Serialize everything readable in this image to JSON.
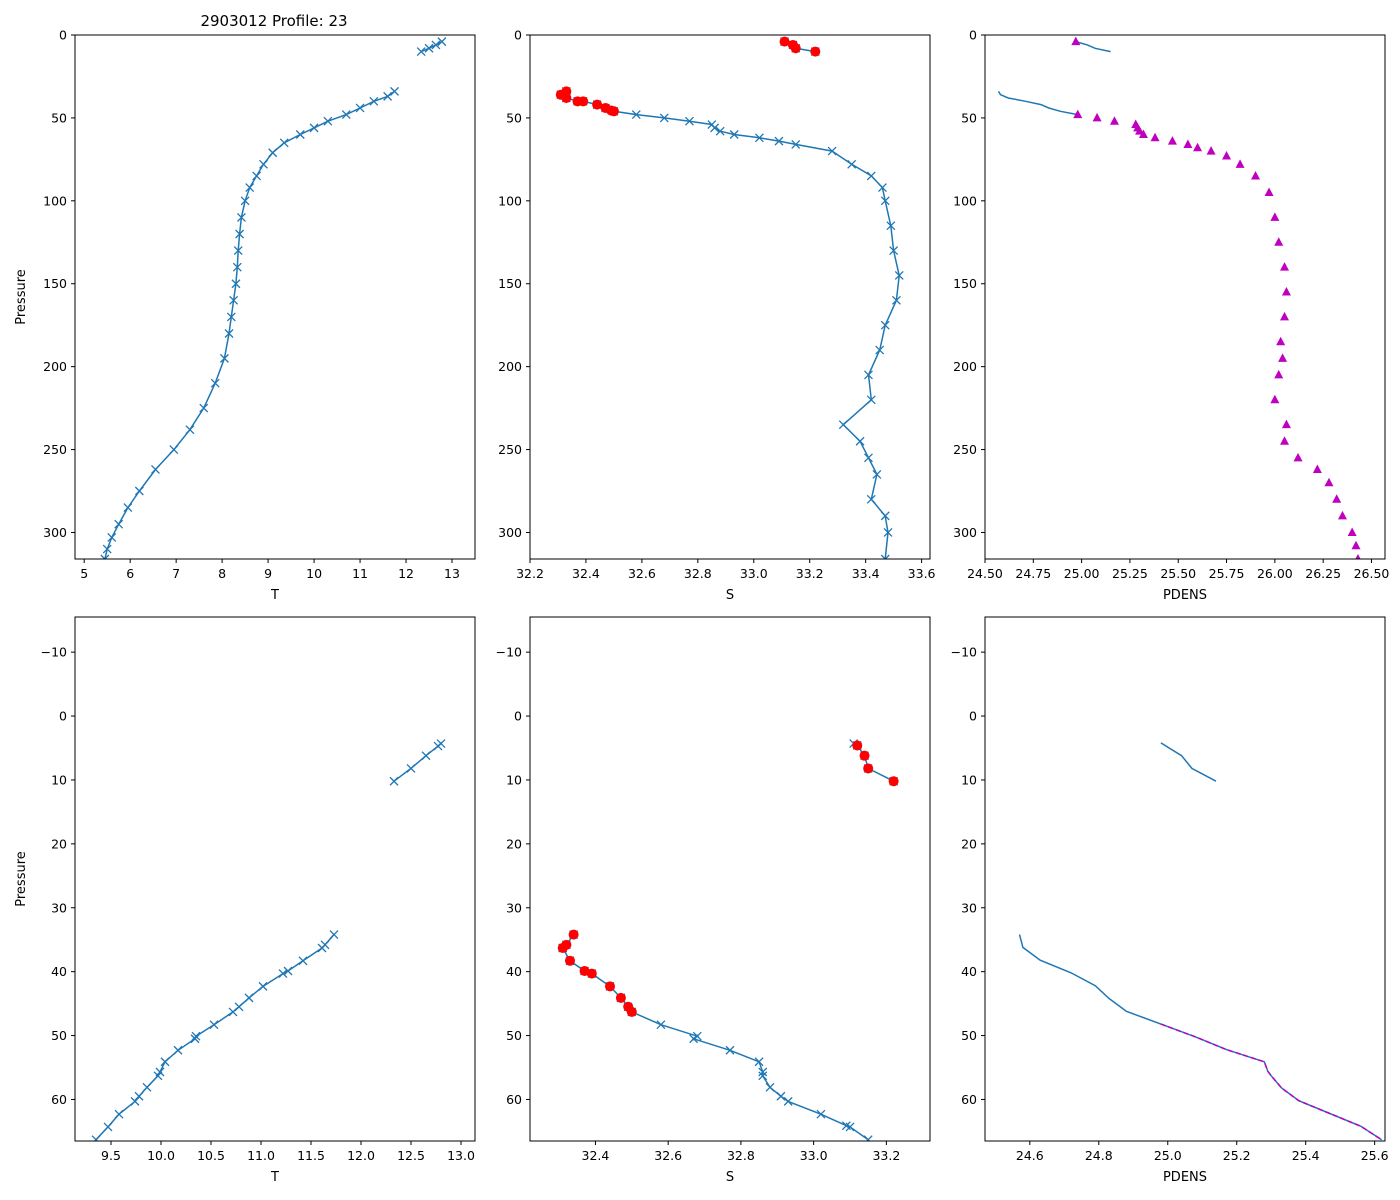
{
  "figure": {
    "title": "2903012 Profile: 23",
    "colors": {
      "series": "#1f77b4",
      "flag_red": "#ff0000",
      "flag_magenta": "#bf00bf",
      "axes": "#000000"
    }
  },
  "chart_data": [
    {
      "id": "top-temperature",
      "type": "line",
      "xlabel": "T",
      "ylabel": "Pressure",
      "xlim": [
        4.8,
        13.5
      ],
      "ylim": [
        316,
        0
      ],
      "xticks": [
        5,
        6,
        7,
        8,
        9,
        10,
        11,
        12,
        13
      ],
      "xtick_labels": [
        "5",
        "6",
        "7",
        "8",
        "9",
        "10",
        "11",
        "12",
        "13"
      ],
      "yticks": [
        0,
        50,
        100,
        150,
        200,
        250,
        300
      ],
      "ytick_labels": [
        "0",
        "50",
        "100",
        "150",
        "200",
        "250",
        "300"
      ],
      "series": [
        {
          "name": "T (upper segment)",
          "marker": "x",
          "color": "#1f77b4",
          "x": [
            12.33,
            12.5,
            12.65,
            12.78
          ],
          "y": [
            10,
            8,
            6,
            4
          ]
        },
        {
          "name": "T",
          "marker": "x",
          "color": "#1f77b4",
          "x": [
            11.75,
            11.6,
            11.3,
            11.0,
            10.7,
            10.3,
            10.0,
            9.7,
            9.35,
            9.1,
            8.9,
            8.75,
            8.6,
            8.5,
            8.42,
            8.38,
            8.35,
            8.33,
            8.3,
            8.25,
            8.2,
            8.15,
            8.05,
            7.85,
            7.6,
            7.3,
            6.95,
            6.55,
            6.2,
            5.95,
            5.75,
            5.6,
            5.5,
            5.45
          ],
          "y": [
            34,
            37,
            40,
            44,
            48,
            52,
            56,
            60,
            65,
            71,
            78,
            85,
            92,
            100,
            110,
            120,
            130,
            140,
            150,
            160,
            170,
            180,
            195,
            210,
            225,
            238,
            250,
            262,
            275,
            285,
            295,
            303,
            310,
            316
          ]
        }
      ]
    },
    {
      "id": "top-salinity",
      "type": "line",
      "xlabel": "S",
      "ylabel": "",
      "xlim": [
        32.2,
        33.63
      ],
      "ylim": [
        316,
        0
      ],
      "xticks": [
        32.2,
        32.4,
        32.6,
        32.8,
        33.0,
        33.2,
        33.4,
        33.6
      ],
      "xtick_labels": [
        "32.2",
        "32.4",
        "32.6",
        "32.8",
        "33.0",
        "33.2",
        "33.4",
        "33.6"
      ],
      "yticks": [
        0,
        50,
        100,
        150,
        200,
        250,
        300
      ],
      "ytick_labels": [
        "0",
        "50",
        "100",
        "150",
        "200",
        "250",
        "300"
      ],
      "series": [
        {
          "name": "S (upper segment)",
          "marker": "x",
          "color": "#1f77b4",
          "x": [
            33.11,
            33.14,
            33.15,
            33.22
          ],
          "y": [
            4,
            6,
            8,
            10
          ]
        },
        {
          "name": "S",
          "marker": "x",
          "color": "#1f77b4",
          "x": [
            32.33,
            32.31,
            32.32,
            32.33,
            32.37,
            32.39,
            32.44,
            32.47,
            32.5,
            32.58,
            32.68,
            32.77,
            32.85,
            32.86,
            32.88,
            32.93,
            33.02,
            33.09,
            33.15,
            33.28,
            33.35,
            33.42,
            33.46,
            33.47,
            33.49,
            33.5,
            33.52,
            33.51,
            33.47,
            33.45,
            33.41,
            33.42,
            33.32,
            33.38,
            33.41,
            33.44,
            33.42,
            33.47,
            33.48,
            33.47
          ],
          "y": [
            34,
            36,
            36,
            38,
            40,
            40,
            42,
            44,
            46,
            48,
            50,
            52,
            54,
            56,
            58,
            60,
            62,
            64,
            66,
            70,
            78,
            85,
            92,
            100,
            115,
            130,
            145,
            160,
            175,
            190,
            205,
            220,
            235,
            245,
            255,
            265,
            280,
            290,
            300,
            316
          ]
        },
        {
          "name": "S flagged",
          "marker": "o",
          "color": "#ff0000",
          "x": [
            33.11,
            33.14,
            33.15,
            33.22,
            32.33,
            32.31,
            32.32,
            32.33,
            32.37,
            32.39,
            32.44,
            32.47,
            32.49,
            32.5
          ],
          "y": [
            4,
            6,
            8,
            10,
            34,
            36,
            36,
            38,
            40,
            40,
            42,
            44,
            45.5,
            46
          ]
        }
      ]
    },
    {
      "id": "top-density",
      "type": "line",
      "xlabel": "PDENS",
      "ylabel": "",
      "xlim": [
        24.5,
        26.57
      ],
      "ylim": [
        316,
        0
      ],
      "xticks": [
        24.5,
        24.75,
        25.0,
        25.25,
        25.5,
        25.75,
        26.0,
        26.25,
        26.5
      ],
      "xtick_labels": [
        "24.50",
        "24.75",
        "25.00",
        "25.25",
        "25.50",
        "25.75",
        "26.00",
        "26.25",
        "26.50"
      ],
      "yticks": [
        0,
        50,
        100,
        150,
        200,
        250,
        300
      ],
      "ytick_labels": [
        "0",
        "50",
        "100",
        "150",
        "200",
        "250",
        "300"
      ],
      "series": [
        {
          "name": "PDENS (upper segment)",
          "marker": "none",
          "color": "#1f77b4",
          "x": [
            24.97,
            25.03,
            25.07,
            25.15
          ],
          "y": [
            4,
            6,
            8,
            10
          ]
        },
        {
          "name": "PDENS",
          "marker": "none",
          "color": "#1f77b4",
          "x": [
            24.57,
            24.58,
            24.62,
            24.71,
            24.79,
            24.83,
            24.89,
            24.98
          ],
          "y": [
            34,
            36,
            38,
            40,
            42,
            44,
            46,
            48
          ]
        },
        {
          "name": "PDENS flagged",
          "marker": "^",
          "color": "#bf00bf",
          "x": [
            24.97,
            24.98,
            25.08,
            25.17,
            25.28,
            25.29,
            25.3,
            25.32,
            25.38,
            25.47,
            25.55,
            25.6,
            25.67,
            25.75,
            25.82,
            25.9,
            25.97,
            26.0,
            26.02,
            26.05,
            26.06,
            26.05,
            26.03,
            26.04,
            26.02,
            26.0,
            26.06,
            26.05,
            26.12,
            26.22,
            26.28,
            26.32,
            26.35,
            26.4,
            26.42,
            26.43
          ],
          "y": [
            4,
            48,
            50,
            52,
            54,
            56,
            58,
            60,
            62,
            64,
            66,
            68,
            70,
            73,
            78,
            85,
            95,
            110,
            125,
            140,
            155,
            170,
            185,
            195,
            205,
            220,
            235,
            245,
            255,
            262,
            270,
            280,
            290,
            300,
            308,
            316
          ]
        }
      ]
    },
    {
      "id": "bottom-temperature",
      "type": "line",
      "xlabel": "T",
      "ylabel": "Pressure",
      "xlim": [
        9.14,
        13.14
      ],
      "ylim": [
        66.5,
        -15.5
      ],
      "xticks": [
        9.5,
        10.0,
        10.5,
        11.0,
        11.5,
        12.0,
        12.5,
        13.0
      ],
      "xtick_labels": [
        "9.5",
        "10.0",
        "10.5",
        "11.0",
        "11.5",
        "12.0",
        "12.5",
        "13.0"
      ],
      "yticks": [
        -10,
        0,
        10,
        20,
        30,
        40,
        50,
        60
      ],
      "ytick_labels": [
        "−10",
        "0",
        "10",
        "20",
        "30",
        "40",
        "50",
        "60"
      ],
      "series": [
        {
          "name": "T (upper segment)",
          "marker": "x",
          "color": "#1f77b4",
          "x": [
            12.33,
            12.5,
            12.65,
            12.77,
            12.8
          ],
          "y": [
            10.2,
            8.2,
            6.2,
            4.7,
            4.3
          ]
        },
        {
          "name": "T",
          "marker": "x",
          "color": "#1f77b4",
          "x": [
            11.73,
            11.64,
            11.61,
            11.42,
            11.27,
            11.22,
            11.02,
            10.88,
            10.78,
            10.72,
            10.53,
            10.35,
            10.34,
            10.17,
            10.04,
            9.99,
            9.97,
            9.86,
            9.78,
            9.74,
            9.58,
            9.47,
            9.35
          ],
          "y": [
            34.2,
            35.8,
            36.3,
            38.3,
            39.9,
            40.3,
            42.3,
            44.1,
            45.5,
            46.3,
            48.3,
            50.1,
            50.5,
            52.3,
            54.1,
            55.7,
            56.3,
            58.1,
            59.5,
            60.3,
            62.3,
            64.3,
            66.3
          ]
        }
      ]
    },
    {
      "id": "bottom-salinity",
      "type": "line",
      "xlabel": "S",
      "ylabel": "",
      "xlim": [
        32.22,
        33.32
      ],
      "ylim": [
        66.5,
        -15.5
      ],
      "xticks": [
        32.4,
        32.6,
        32.8,
        33.0,
        33.2
      ],
      "xtick_labels": [
        "32.4",
        "32.6",
        "32.8",
        "33.0",
        "33.2"
      ],
      "yticks": [
        -10,
        0,
        10,
        20,
        30,
        40,
        50,
        60
      ],
      "ytick_labels": [
        "−10",
        "0",
        "10",
        "20",
        "30",
        "40",
        "50",
        "60"
      ],
      "series": [
        {
          "name": "S (upper segment)",
          "marker": "x",
          "color": "#1f77b4",
          "x": [
            33.11,
            33.12,
            33.14,
            33.15,
            33.22
          ],
          "y": [
            4.3,
            4.6,
            6.2,
            8.2,
            10.2
          ]
        },
        {
          "name": "S",
          "marker": "x",
          "color": "#1f77b4",
          "x": [
            32.34,
            32.32,
            32.31,
            32.31,
            32.33,
            32.37,
            32.39,
            32.44,
            32.47,
            32.49,
            32.5,
            32.58,
            32.68,
            32.67,
            32.77,
            32.85,
            32.86,
            32.86,
            32.88,
            32.91,
            32.93,
            33.02,
            33.09,
            33.1,
            33.15
          ],
          "y": [
            34.2,
            35.8,
            36.3,
            36.3,
            38.3,
            39.9,
            40.3,
            42.3,
            44.1,
            45.5,
            46.3,
            48.3,
            50.1,
            50.5,
            52.3,
            54.1,
            55.7,
            56.3,
            58.1,
            59.5,
            60.3,
            62.3,
            64.1,
            64.3,
            66.3
          ]
        },
        {
          "name": "S flagged",
          "marker": "o",
          "color": "#ff0000",
          "x": [
            33.12,
            33.14,
            33.15,
            33.22,
            32.34,
            32.32,
            32.31,
            32.33,
            32.37,
            32.39,
            32.44,
            32.47,
            32.49,
            32.5
          ],
          "y": [
            4.6,
            6.2,
            8.2,
            10.2,
            34.2,
            35.8,
            36.3,
            38.3,
            39.9,
            40.3,
            42.3,
            44.1,
            45.5,
            46.3
          ]
        }
      ]
    },
    {
      "id": "bottom-density",
      "type": "line",
      "xlabel": "PDENS",
      "ylabel": "",
      "xlim": [
        24.47,
        25.63
      ],
      "ylim": [
        66.5,
        -15.5
      ],
      "xticks": [
        24.6,
        24.8,
        25.0,
        25.2,
        25.4,
        25.6
      ],
      "xtick_labels": [
        "24.6",
        "24.8",
        "25.0",
        "25.2",
        "25.4",
        "25.6"
      ],
      "yticks": [
        -10,
        0,
        10,
        20,
        30,
        40,
        50,
        60
      ],
      "ytick_labels": [
        "−10",
        "0",
        "10",
        "20",
        "30",
        "40",
        "50",
        "60"
      ],
      "series": [
        {
          "name": "PDENS (upper segment)",
          "marker": "none",
          "color": "#1f77b4",
          "x": [
            24.98,
            25.04,
            25.07,
            25.14
          ],
          "y": [
            4.2,
            6.2,
            8.2,
            10.2
          ]
        },
        {
          "name": "PDENS",
          "marker": "none",
          "color": "#1f77b4",
          "x": [
            24.57,
            24.58,
            24.63,
            24.72,
            24.79,
            24.83,
            24.88,
            24.98,
            25.08,
            25.17,
            25.28,
            25.29,
            25.3,
            25.33,
            25.38,
            25.47,
            25.56,
            25.62
          ],
          "y": [
            34.2,
            36.2,
            38.2,
            40.2,
            42.2,
            44.2,
            46.2,
            48.2,
            50.2,
            52.2,
            54.1,
            55.6,
            56.3,
            58.2,
            60.2,
            62.2,
            64.2,
            66.3
          ]
        },
        {
          "name": "PDENS flagged",
          "marker": "none",
          "color": "#bf00bf",
          "dashed": true,
          "x": [
            24.98,
            25.08,
            25.17,
            25.28,
            25.29,
            25.3,
            25.33,
            25.38,
            25.47,
            25.56,
            25.62
          ],
          "y": [
            48.2,
            50.2,
            52.2,
            54.1,
            55.6,
            56.3,
            58.2,
            60.2,
            62.2,
            64.2,
            66.3
          ]
        }
      ]
    }
  ]
}
